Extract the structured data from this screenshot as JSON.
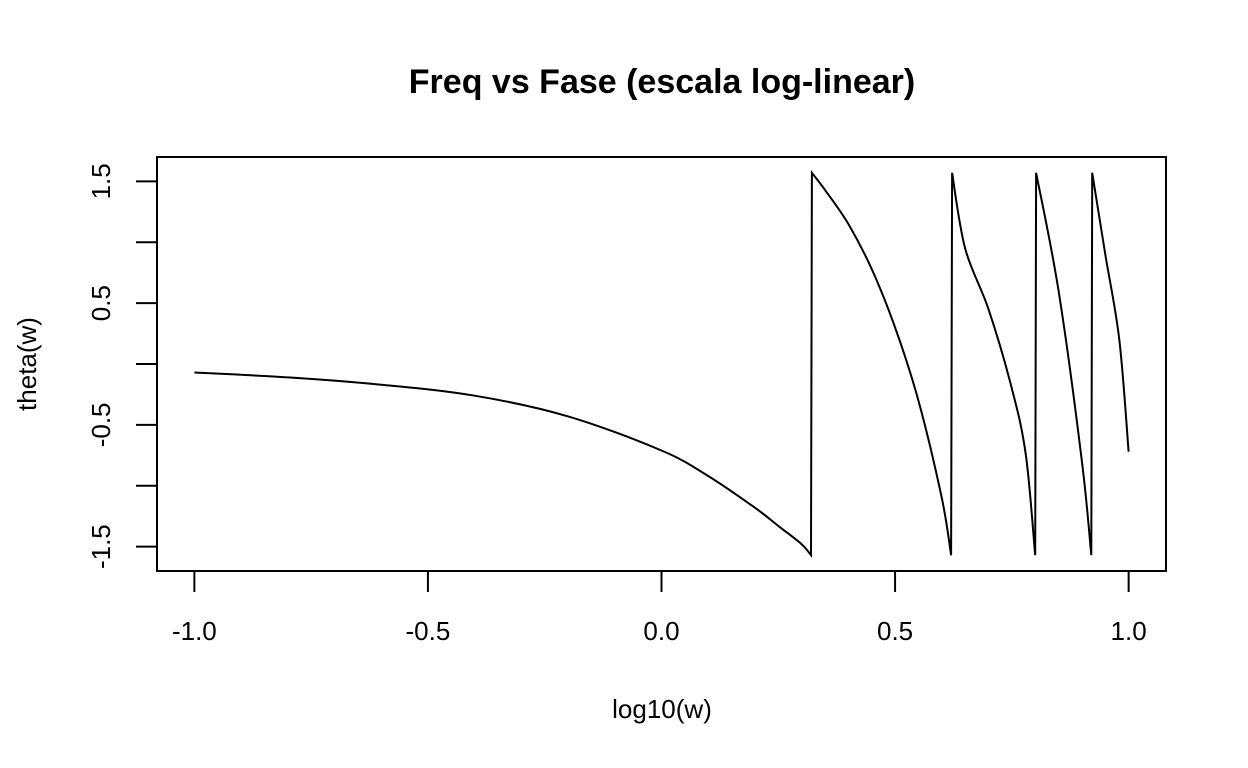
{
  "chart_data": {
    "type": "line",
    "title": "Freq vs Fase (escala log-linear)",
    "xlabel": "log10(w)",
    "ylabel": "theta(w)",
    "xlim": [
      -1.08,
      1.08
    ],
    "ylim": [
      -1.7,
      1.7
    ],
    "x_ticks": [
      -1.0,
      -0.5,
      0.0,
      0.5,
      1.0
    ],
    "x_tick_labels": [
      "-1.0",
      "-0.5",
      "0.0",
      "0.5",
      "1.0"
    ],
    "y_ticks": [
      -1.5,
      -1.0,
      -0.5,
      0.0,
      0.5,
      1.0,
      1.5
    ],
    "y_tick_labels": [
      "-1.5",
      "",
      "-0.5",
      "",
      "0.5",
      "",
      "1.5"
    ],
    "grid": false,
    "legend": "none",
    "line_color": "#000000",
    "series": [
      {
        "x": [
          -1.0,
          -0.8,
          -0.6,
          -0.4,
          -0.2,
          0.0,
          0.1,
          0.2,
          0.25,
          0.3,
          0.32,
          0.322,
          0.35,
          0.4,
          0.45,
          0.5,
          0.55,
          0.6,
          0.62,
          0.622,
          0.65,
          0.7,
          0.75,
          0.78,
          0.8,
          0.802,
          0.85,
          0.9,
          0.92,
          0.922,
          0.95,
          0.98,
          1.0
        ],
        "y": [
          -0.07,
          -0.11,
          -0.17,
          -0.26,
          -0.43,
          -0.71,
          -0.92,
          -1.18,
          -1.33,
          -1.48,
          -1.57,
          1.57,
          1.43,
          1.15,
          0.78,
          0.3,
          -0.3,
          -1.1,
          -1.57,
          1.57,
          0.95,
          0.45,
          -0.2,
          -0.75,
          -1.57,
          1.57,
          0.6,
          -0.8,
          -1.57,
          1.57,
          0.9,
          0.2,
          -0.72
        ]
      }
    ]
  }
}
